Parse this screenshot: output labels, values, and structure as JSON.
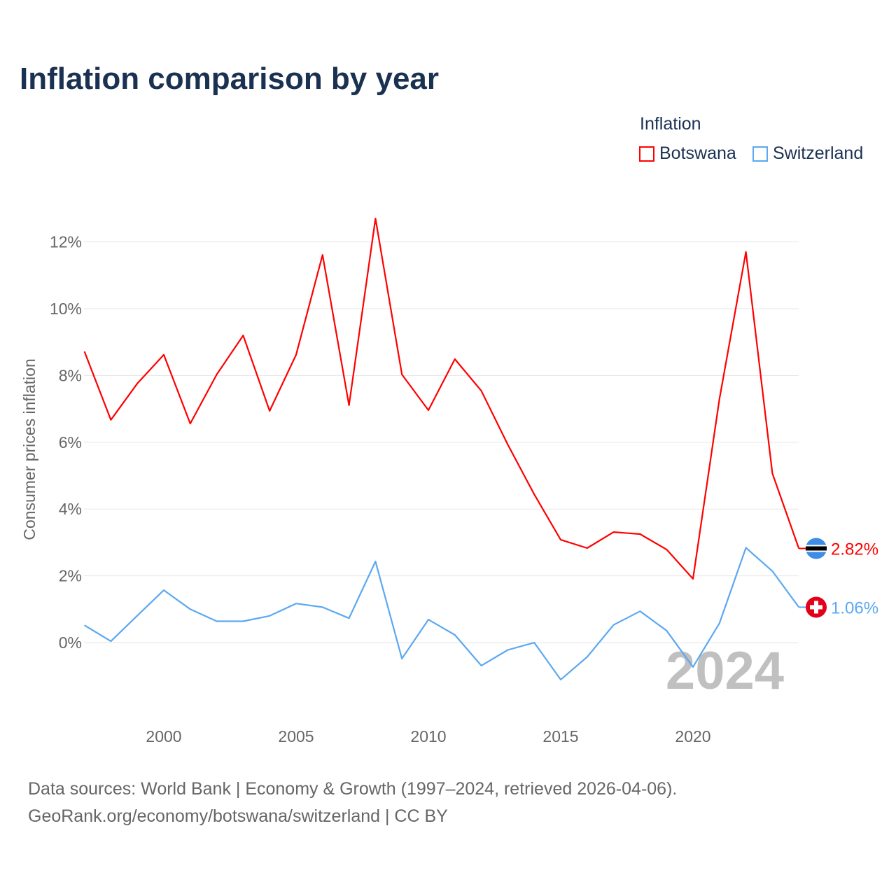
{
  "title": "Inflation comparison by year",
  "legend": {
    "title": "Inflation",
    "items": [
      {
        "label": "Botswana",
        "color": "#ff0000"
      },
      {
        "label": "Switzerland",
        "color": "#5ca8f0"
      }
    ]
  },
  "source": {
    "line1": "Data sources: World Bank | Economy & Growth (1997–2024, retrieved 2026-04-06).",
    "line2": "GeoRank.org/economy/botswana/switzerland | CC BY"
  },
  "chart_data": {
    "type": "line",
    "title": "Inflation comparison by year",
    "xlabel": "",
    "ylabel": "Consumer prices inflation",
    "x": [
      1997,
      1998,
      1999,
      2000,
      2001,
      2002,
      2003,
      2004,
      2005,
      2006,
      2007,
      2008,
      2009,
      2010,
      2011,
      2012,
      2013,
      2014,
      2015,
      2016,
      2017,
      2018,
      2019,
      2020,
      2021,
      2022,
      2023,
      2024
    ],
    "xticks": [
      "2000",
      "2005",
      "2010",
      "2015",
      "2020"
    ],
    "xtick_values": [
      2000,
      2005,
      2010,
      2015,
      2020
    ],
    "yticks": [
      "0%",
      "2%",
      "4%",
      "6%",
      "8%",
      "10%",
      "12%"
    ],
    "ytick_values": [
      0,
      2,
      4,
      6,
      8,
      10,
      12
    ],
    "ylim": [
      -2,
      13.5
    ],
    "grid": true,
    "legend_position": "top-right",
    "year_watermark": "2024",
    "series": [
      {
        "name": "Botswana",
        "color": "#ff0000",
        "end_label": "2.82%",
        "values": [
          8.72,
          6.67,
          7.76,
          8.62,
          6.56,
          8.03,
          9.2,
          6.94,
          8.62,
          11.61,
          7.11,
          12.7,
          8.03,
          6.96,
          8.49,
          7.54,
          5.93,
          4.44,
          3.08,
          2.83,
          3.31,
          3.25,
          2.79,
          1.91,
          7.3,
          11.7,
          5.07,
          2.82
        ]
      },
      {
        "name": "Switzerland",
        "color": "#5ca8f0",
        "end_label": "1.06%",
        "values": [
          0.52,
          0.04,
          0.81,
          1.57,
          1.0,
          0.64,
          0.64,
          0.8,
          1.17,
          1.06,
          0.73,
          2.43,
          -0.48,
          0.69,
          0.23,
          -0.69,
          -0.22,
          0.0,
          -1.11,
          -0.43,
          0.53,
          0.94,
          0.36,
          -0.73,
          0.58,
          2.84,
          2.14,
          1.06
        ]
      }
    ]
  }
}
